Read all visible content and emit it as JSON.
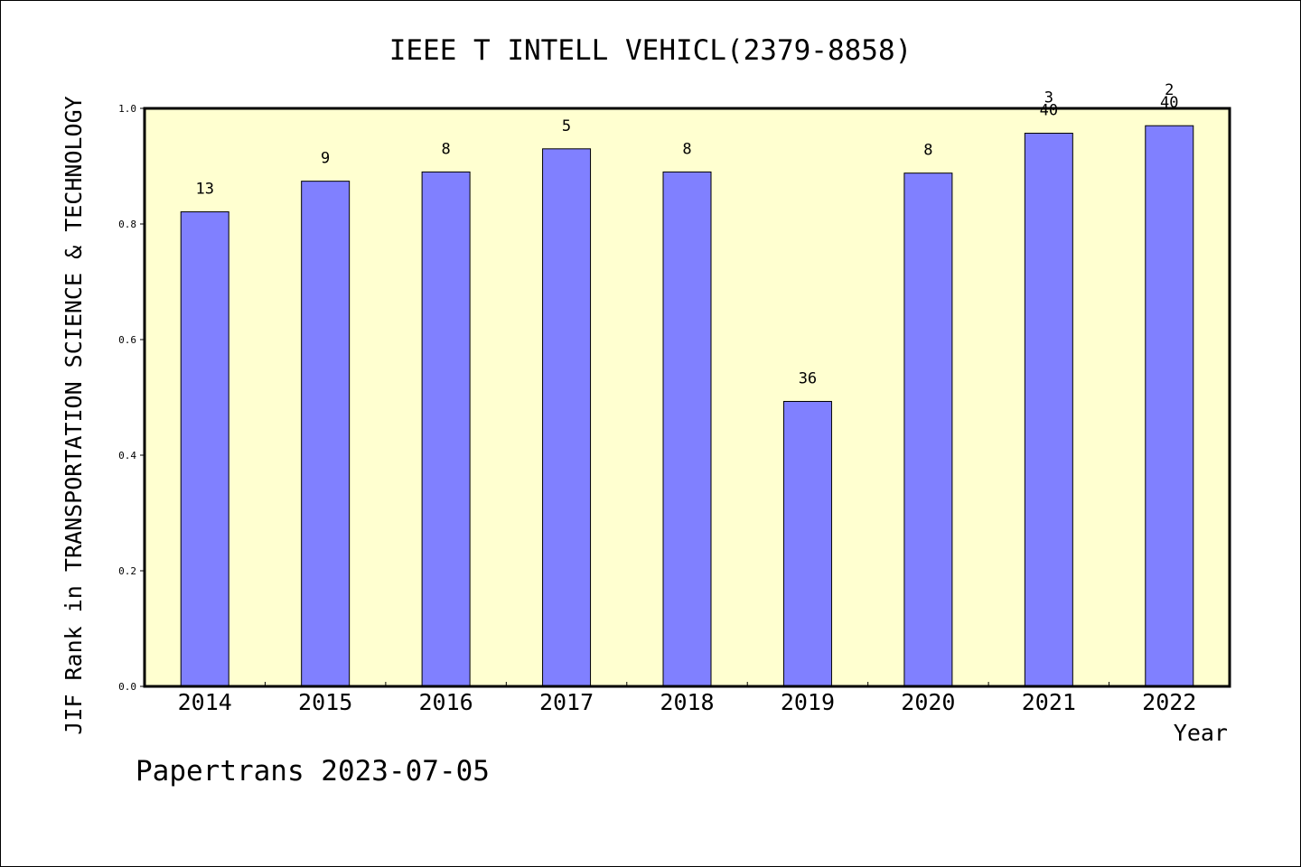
{
  "chart_data": {
    "type": "bar",
    "title": "IEEE T INTELL VEHICL(2379-8858)",
    "xlabel": "Year",
    "ylabel": "JIF Rank in TRANSPORTATION SCIENCE & TECHNOLOGY",
    "categories": [
      "2014",
      "2015",
      "2016",
      "2017",
      "2018",
      "2019",
      "2020",
      "2021",
      "2022"
    ],
    "values": [
      0.821,
      0.874,
      0.89,
      0.93,
      0.89,
      0.493,
      0.888,
      0.957,
      0.97
    ],
    "rank_labels": [
      [
        "13"
      ],
      [
        "9"
      ],
      [
        "8"
      ],
      [
        "5"
      ],
      [
        "8"
      ],
      [
        "36"
      ],
      [
        "8"
      ],
      [
        "3",
        "40"
      ],
      [
        "2",
        "40"
      ]
    ],
    "ylim": [
      0,
      1.0
    ],
    "yticks": [
      "0.0",
      "0.2",
      "0.4",
      "0.6",
      "0.8",
      "1.0"
    ],
    "grid": false,
    "colors": {
      "bar_fill": "#8080ff",
      "plot_background": "#ffffd0",
      "axis": "#000000"
    }
  },
  "footer": {
    "text": "Papertrans 2023-07-05"
  }
}
